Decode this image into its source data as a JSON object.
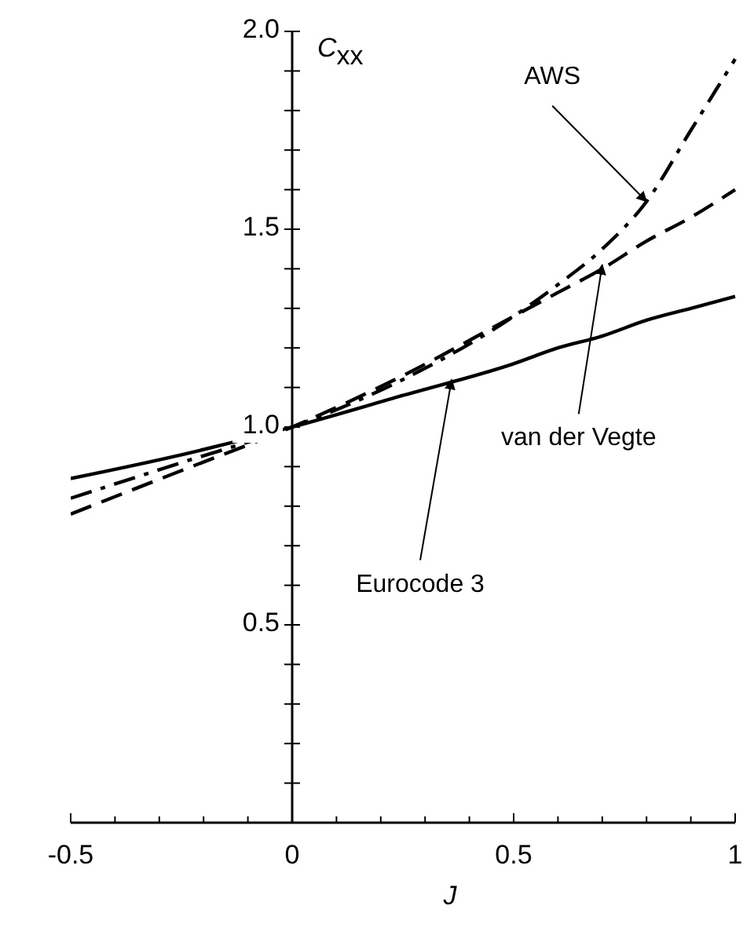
{
  "chart_data": {
    "type": "line",
    "xlabel": "J",
    "ylabel": "C$_{xx}$",
    "x": [
      -0.5,
      -0.25,
      0,
      0.25,
      0.5,
      0.6,
      0.7,
      0.8,
      0.9,
      1
    ],
    "series": [
      {
        "color": "#000000",
        "line_style": "solid",
        "values": [
          0.87,
          0.93,
          1.0,
          1.08,
          1.16,
          1.2,
          1.23,
          1.27,
          1.3,
          1.33
        ]
      },
      {
        "color": "#000000",
        "line_style": "dashed",
        "values": [
          0.78,
          0.89,
          1.0,
          1.13,
          1.28,
          1.34,
          1.4,
          1.47,
          1.53,
          1.6
        ]
      },
      {
        "color": "#000000",
        "line_style": "dashdot",
        "values": [
          0.82,
          0.91,
          1.0,
          1.12,
          1.28,
          1.36,
          1.45,
          1.57,
          1.75,
          1.93
        ]
      }
    ],
    "xlim": [
      -0.5,
      1
    ],
    "ylim": [
      0,
      2
    ],
    "xticks": [
      -0.5,
      {
        "value": -0.4,
        "label": null
      },
      {
        "value": -0.3,
        "label": null
      },
      {
        "value": -0.2,
        "label": null
      },
      {
        "value": -0.1,
        "label": null
      },
      0,
      {
        "value": 0.1,
        "label": null
      },
      {
        "value": 0.2,
        "label": null
      },
      {
        "value": 0.3,
        "label": null
      },
      {
        "value": 0.4,
        "label": null
      },
      0.5,
      {
        "value": 0.6,
        "label": null
      },
      {
        "value": 0.7,
        "label": null
      },
      {
        "value": 0.8,
        "label": null
      },
      {
        "value": 0.9,
        "label": null
      },
      1
    ],
    "yticks": [
      {
        "value": 0.1,
        "label": null
      },
      {
        "value": 0.2,
        "label": null
      },
      {
        "value": 0.3,
        "label": null
      },
      {
        "value": 0.4,
        "label": null
      },
      0.5,
      {
        "value": 0.6,
        "label": null
      },
      {
        "value": 0.7,
        "label": null
      },
      {
        "value": 0.8,
        "label": null
      },
      {
        "value": 0.9,
        "label": null
      },
      {
        "value": 1,
        "label": "1.0"
      },
      {
        "value": 1.1,
        "label": null
      },
      {
        "value": 1.2,
        "label": null
      },
      {
        "value": 1.3,
        "label": null
      },
      {
        "value": 1.4,
        "label": null
      },
      1.5,
      {
        "value": 1.6,
        "label": null
      },
      {
        "value": 1.7,
        "label": null
      },
      {
        "value": 1.8,
        "label": null
      },
      {
        "value": 1.9,
        "label": null
      },
      {
        "value": 2,
        "label": "2.0"
      }
    ],
    "annotations": [
      {
        "text": "AWS",
        "x": 0.8,
        "y": 1.57
      },
      {
        "text": "van der Vegte",
        "x": 0.7,
        "y": 1.41
      },
      {
        "text": "Eurocode 3",
        "x": 0.36,
        "y": 1.12
      }
    ]
  }
}
